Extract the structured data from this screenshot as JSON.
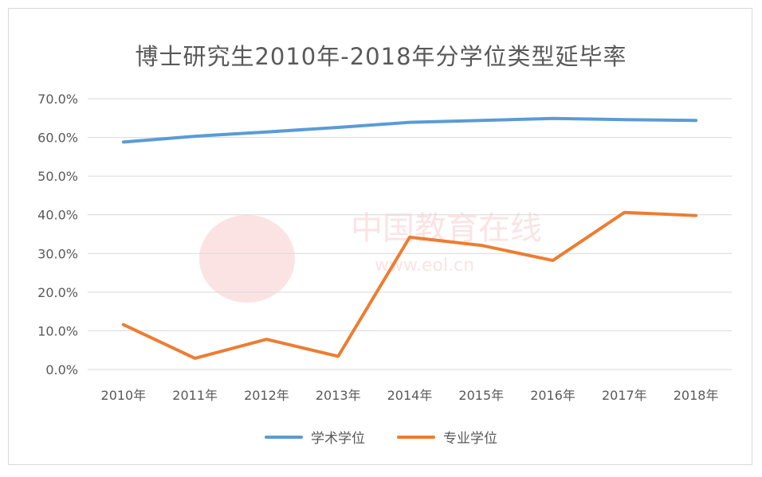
{
  "chart_data": {
    "type": "line",
    "title": "博士研究生2010年-2018年分学位类型延毕率",
    "categories": [
      "2010年",
      "2011年",
      "2012年",
      "2013年",
      "2014年",
      "2015年",
      "2016年",
      "2017年",
      "2018年"
    ],
    "y_ticks": [
      "0.0%",
      "10.0%",
      "20.0%",
      "30.0%",
      "40.0%",
      "50.0%",
      "60.0%",
      "70.0%"
    ],
    "ylim": [
      0,
      70
    ],
    "grid": true,
    "legend_position": "bottom",
    "series": [
      {
        "name": "学术学位",
        "color": "#5b9bd5",
        "values": [
          58.8,
          60.3,
          61.4,
          62.6,
          63.9,
          64.4,
          64.9,
          64.6,
          64.4
        ]
      },
      {
        "name": "专业学位",
        "color": "#ed7d31",
        "values": [
          11.6,
          2.9,
          7.8,
          3.4,
          34.2,
          32.1,
          28.2,
          40.6,
          39.8
        ]
      }
    ]
  },
  "watermark": {
    "text": "中国教育在线",
    "subtext": "www.eol.cn",
    "logo": "eol"
  }
}
